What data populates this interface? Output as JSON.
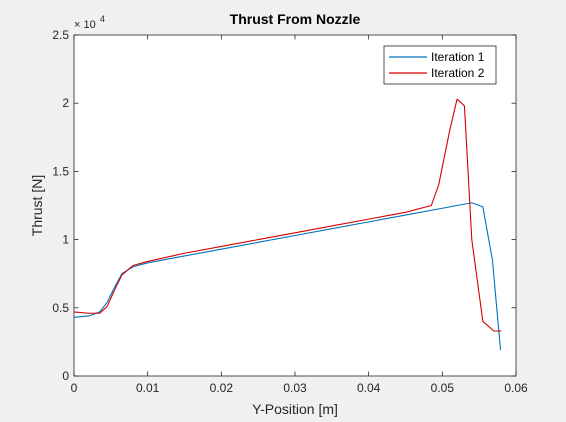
{
  "chart_data": {
    "type": "line",
    "title": "Thrust From Nozzle",
    "xlabel": "Y-Position [m]",
    "ylabel": "Thrust [N]",
    "xlim": [
      0,
      0.06
    ],
    "ylim": [
      0,
      25000
    ],
    "x_ticks": [
      "0",
      "0.01",
      "0.02",
      "0.03",
      "0.04",
      "0.05",
      "0.06"
    ],
    "y_ticks": [
      "0",
      "0.5",
      "1",
      "1.5",
      "2",
      "2.5"
    ],
    "y_multiplier_base": "× 10",
    "y_multiplier_exp": "4",
    "legend_position": "top-right",
    "grid": false,
    "series": [
      {
        "name": "Iteration 1",
        "color": "#0072bd",
        "x": [
          0,
          0.002,
          0.0035,
          0.0045,
          0.0055,
          0.0065,
          0.008,
          0.01,
          0.015,
          0.02,
          0.025,
          0.03,
          0.035,
          0.04,
          0.045,
          0.05,
          0.054,
          0.0555,
          0.0568,
          0.0579
        ],
        "y": [
          4300,
          4400,
          4700,
          5400,
          6500,
          7500,
          8000,
          8300,
          8800,
          9300,
          9800,
          10300,
          10800,
          11300,
          11800,
          12300,
          12700,
          12400,
          8500,
          1900
        ]
      },
      {
        "name": "Iteration 2",
        "color": "#d40000",
        "x": [
          0,
          0.002,
          0.0035,
          0.0045,
          0.0055,
          0.0065,
          0.008,
          0.01,
          0.015,
          0.02,
          0.025,
          0.03,
          0.035,
          0.04,
          0.045,
          0.0485,
          0.0495,
          0.051,
          0.052,
          0.053,
          0.054,
          0.0555,
          0.057,
          0.058
        ],
        "y": [
          4700,
          4600,
          4600,
          5100,
          6300,
          7400,
          8100,
          8400,
          9000,
          9500,
          10000,
          10500,
          11000,
          11500,
          12000,
          12500,
          14000,
          18000,
          20300,
          19800,
          10000,
          4000,
          3300,
          3300
        ]
      }
    ]
  }
}
